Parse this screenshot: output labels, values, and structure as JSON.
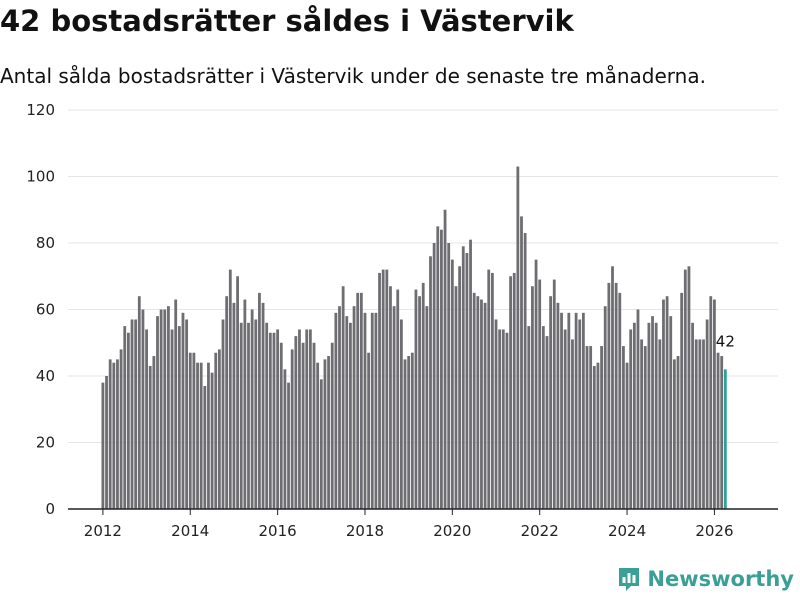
{
  "page": {
    "title": "42 bostadsrätter såldes i Västervik",
    "subtitle": "Antal sålda bostadsrätter i Västervik under de senaste tre månaderna."
  },
  "brand": {
    "name": "Newsworthy",
    "icon": "bar-chart-logo-icon",
    "color": "#3aa096"
  },
  "chart_data": {
    "type": "bar",
    "title": "42 bostadsrätter såldes i Västervik",
    "subtitle": "Antal sålda bostadsrätter i Västervik under de senaste tre månaderna.",
    "xlabel": "",
    "ylabel": "",
    "ylim": [
      0,
      120
    ],
    "yticks": [
      0,
      20,
      40,
      60,
      80,
      100,
      120
    ],
    "xticks": [
      "2012",
      "2014",
      "2016",
      "2018",
      "2020",
      "2022",
      "2024",
      "2026"
    ],
    "x_start": "2012-01",
    "frequency": "monthly",
    "bar_color": "#6e6d71",
    "highlight_color": "#2aa198",
    "highlight_last": true,
    "annotation": "42",
    "values": [
      38,
      40,
      45,
      44,
      45,
      48,
      55,
      53,
      57,
      57,
      64,
      60,
      54,
      43,
      46,
      58,
      60,
      60,
      61,
      54,
      63,
      55,
      59,
      57,
      47,
      47,
      44,
      44,
      37,
      44,
      41,
      47,
      48,
      57,
      64,
      72,
      62,
      70,
      56,
      63,
      56,
      60,
      57,
      65,
      62,
      56,
      53,
      53,
      54,
      50,
      42,
      38,
      48,
      52,
      54,
      50,
      54,
      54,
      50,
      44,
      39,
      45,
      46,
      50,
      59,
      61,
      67,
      58,
      56,
      61,
      65,
      65,
      59,
      47,
      59,
      59,
      71,
      72,
      72,
      67,
      61,
      66,
      57,
      45,
      46,
      47,
      66,
      64,
      68,
      61,
      76,
      80,
      85,
      84,
      90,
      80,
      75,
      67,
      73,
      79,
      77,
      81,
      65,
      64,
      63,
      62,
      72,
      71,
      57,
      54,
      54,
      53,
      70,
      71,
      103,
      88,
      83,
      55,
      67,
      75,
      69,
      55,
      52,
      64,
      69,
      62,
      59,
      54,
      59,
      51,
      59,
      57,
      59,
      49,
      49,
      43,
      44,
      49,
      61,
      68,
      73,
      68,
      65,
      49,
      44,
      54,
      56,
      60,
      51,
      49,
      56,
      58,
      56,
      51,
      63,
      64,
      58,
      45,
      46,
      65,
      72,
      73,
      56,
      51,
      51,
      51,
      57,
      64,
      63,
      47,
      46,
      42
    ]
  }
}
